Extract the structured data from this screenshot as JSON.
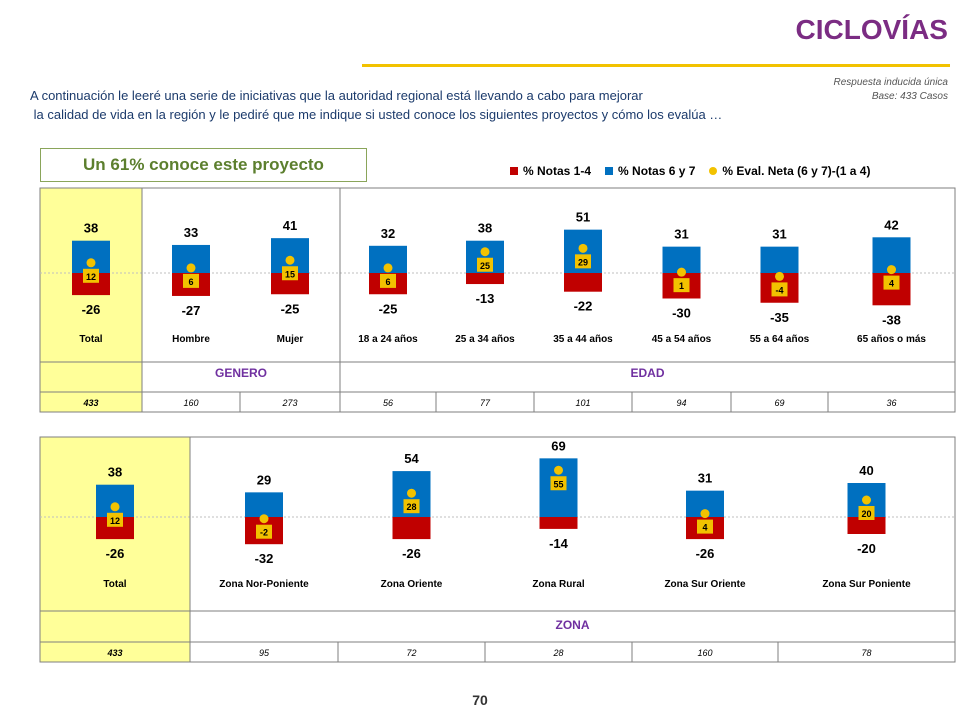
{
  "header": {
    "title": "CICLOVÍAS",
    "meta_line1": "Respuesta inducida única",
    "meta_line2": "Base: 433 Casos",
    "intro_line1": "A continuación le leeré una serie de iniciativas que la autoridad regional está llevando a cabo para mejorar",
    "intro_line2": " la calidad de vida en la región y le pediré que me indique si usted conoce los siguientes proyectos y cómo los evalúa …"
  },
  "callout": "Un 61% conoce este proyecto",
  "legend": [
    {
      "label": "% Notas 1-4",
      "color": "#c00000"
    },
    {
      "label": "% Notas 6 y 7",
      "color": "#0070c0"
    },
    {
      "label": "% Eval. Neta (6 y 7)-(1 a 4)",
      "color": "#f2c200"
    }
  ],
  "colors": {
    "negative": "#c00000",
    "positive": "#0070c0",
    "net": "#f2c200",
    "highlight": "#ffff99",
    "group_label": "#7030a0"
  },
  "chart_data": [
    {
      "type": "bar",
      "categories": [
        "Total",
        "Hombre",
        "Mujer",
        "18 a 24 años",
        "25 a 34 años",
        "35 a 44 años",
        "45 a 54 años",
        "55 a 64 años",
        "65 años o más"
      ],
      "series": [
        {
          "name": "% Notas 1-4",
          "values": [
            -26,
            -27,
            -25,
            -25,
            -13,
            -22,
            -30,
            -35,
            -38
          ]
        },
        {
          "name": "% Notas 6 y 7",
          "values": [
            38,
            33,
            41,
            32,
            38,
            51,
            31,
            31,
            42
          ]
        },
        {
          "name": "% Eval. Neta (6 y 7)-(1 a 4)",
          "values": [
            12,
            6,
            15,
            6,
            25,
            29,
            1,
            -4,
            4
          ]
        }
      ],
      "groups": [
        {
          "label": "",
          "from": 0,
          "to": 0
        },
        {
          "label": "GENERO",
          "from": 1,
          "to": 2
        },
        {
          "label": "EDAD",
          "from": 3,
          "to": 8
        }
      ],
      "bases": [
        "433",
        "160",
        "273",
        "56",
        "77",
        "101",
        "94",
        "69",
        "36"
      ]
    },
    {
      "type": "bar",
      "categories": [
        "Total",
        "Zona Nor-Poniente",
        "Zona Oriente",
        "Zona Rural",
        "Zona Sur Oriente",
        "Zona Sur Poniente"
      ],
      "series": [
        {
          "name": "% Notas 1-4",
          "values": [
            -26,
            -32,
            -26,
            -14,
            -26,
            -20
          ]
        },
        {
          "name": "% Notas 6 y 7",
          "values": [
            38,
            29,
            54,
            69,
            31,
            40
          ]
        },
        {
          "name": "% Eval. Neta (6 y 7)-(1 a 4)",
          "values": [
            12,
            -2,
            28,
            55,
            4,
            20
          ]
        }
      ],
      "groups": [
        {
          "label": "",
          "from": 0,
          "to": 0
        },
        {
          "label": "ZONA",
          "from": 1,
          "to": 5
        }
      ],
      "bases": [
        "433",
        "95",
        "72",
        "28",
        "160",
        "78"
      ]
    }
  ],
  "page_number": "70"
}
